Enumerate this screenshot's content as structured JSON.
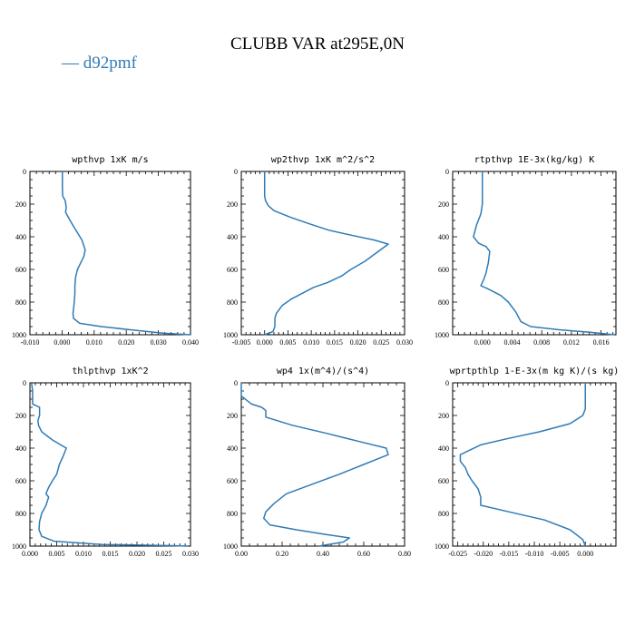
{
  "figure": {
    "title": "CLUBB VAR at295E,0N",
    "legend": "— d92pmf",
    "line_color": "#2f7bb6"
  },
  "chart_data": [
    {
      "type": "line",
      "title": "wpthvp   1xK m/s",
      "xlim": [
        -0.01,
        0.04
      ],
      "ylim": [
        1000,
        0
      ],
      "xticks": [
        "-0.010",
        "0.000",
        "0.010",
        "0.020",
        "0.030",
        "0.040"
      ],
      "yticks": [
        "0",
        "200",
        "400",
        "600",
        "800",
        "1000"
      ],
      "series": [
        {
          "x": [
            0.0001,
            0.0001,
            0.0002,
            0.001,
            0.0013,
            0.0011,
            0.0025,
            0.004,
            0.0062,
            0.0072,
            0.0068,
            0.0058,
            0.0048,
            0.0042,
            0.004,
            0.004,
            0.0038,
            0.0036,
            0.0034,
            0.0036,
            0.0055,
            0.0122,
            0.0215,
            0.0315,
            0.04
          ],
          "y": [
            0,
            100,
            150,
            180,
            220,
            250,
            300,
            350,
            420,
            480,
            520,
            560,
            600,
            650,
            700,
            750,
            800,
            840,
            870,
            900,
            930,
            950,
            970,
            990,
            1000
          ]
        }
      ]
    },
    {
      "type": "line",
      "title": "wp2thvp   1xK m^2/s^2",
      "xlim": [
        -0.005,
        0.03
      ],
      "ylim": [
        1000,
        0
      ],
      "xticks": [
        "-0.005",
        "0.000",
        "0.005",
        "0.010",
        "0.015",
        "0.020",
        "0.025",
        "0.030"
      ],
      "yticks": [
        "0",
        "200",
        "400",
        "600",
        "800",
        "1000"
      ],
      "series": [
        {
          "x": [
            0,
            0,
            0,
            0.0002,
            0.0008,
            0.002,
            0.0055,
            0.0095,
            0.0138,
            0.0185,
            0.0235,
            0.0265,
            0.0215,
            0.0185,
            0.0165,
            0.0135,
            0.0105,
            0.0085,
            0.0058,
            0.0038,
            0.0025,
            0.0022,
            0.0022,
            0.0018,
            0
          ],
          "y": [
            0,
            100,
            150,
            180,
            210,
            240,
            280,
            320,
            360,
            390,
            420,
            445,
            550,
            600,
            640,
            680,
            710,
            740,
            780,
            820,
            870,
            900,
            950,
            980,
            1000
          ]
        }
      ]
    },
    {
      "type": "line",
      "title": "rtpthvp   1E-3x(kg/kg) K",
      "xlim": [
        -0.004,
        0.018
      ],
      "ylim": [
        1000,
        0
      ],
      "xticks": [
        "0.000",
        "0.004",
        "0.008",
        "0.012",
        "0.016"
      ],
      "yticks": [
        "0",
        "200",
        "400",
        "600",
        "800",
        "1000"
      ],
      "series": [
        {
          "x": [
            0,
            0,
            0,
            0,
            -0.0002,
            -0.0008,
            -0.0012,
            -0.0005,
            0.0005,
            0.001,
            0.0008,
            0.0005,
            0.0002,
            -0.0002,
            0.0008,
            0.0025,
            0.0035,
            0.0045,
            0.0052,
            0.0065,
            0.0105,
            0.0145,
            0.0178
          ],
          "y": [
            0,
            100,
            150,
            200,
            260,
            330,
            400,
            440,
            460,
            490,
            560,
            620,
            660,
            700,
            720,
            760,
            800,
            860,
            920,
            950,
            970,
            985,
            1000
          ]
        }
      ]
    },
    {
      "type": "line",
      "title": "thlpthvp   1xK^2",
      "xlim": [
        0,
        0.03
      ],
      "ylim": [
        1000,
        0
      ],
      "xticks": [
        "0.000",
        "0.005",
        "0.010",
        "0.015",
        "0.020",
        "0.025",
        "0.030"
      ],
      "yticks": [
        "0",
        "200",
        "400",
        "600",
        "800",
        "1000"
      ],
      "series": [
        {
          "x": [
            0.0003,
            0.0005,
            0.0005,
            0.0005,
            0.0018,
            0.0018,
            0.0015,
            0.0016,
            0.0022,
            0.0042,
            0.0068,
            0.0062,
            0.0055,
            0.005,
            0.0042,
            0.0035,
            0.003,
            0.0035,
            0.003,
            0.0022,
            0.0018,
            0.0017,
            0.0022,
            0.0045,
            0.0135,
            0.0265,
            0.0295
          ],
          "y": [
            0,
            50,
            100,
            130,
            150,
            200,
            230,
            260,
            300,
            350,
            400,
            450,
            500,
            560,
            600,
            640,
            680,
            700,
            750,
            800,
            850,
            900,
            940,
            970,
            990,
            997,
            1000
          ]
        }
      ]
    },
    {
      "type": "line",
      "title": "wp4   1x(m^4)/(s^4)",
      "xlim": [
        0,
        0.8
      ],
      "ylim": [
        1000,
        0
      ],
      "xticks": [
        "0.00",
        "0.20",
        "0.40",
        "0.60",
        "0.80"
      ],
      "yticks": [
        "0",
        "200",
        "400",
        "600",
        "800",
        "1000"
      ],
      "series": [
        {
          "x": [
            0,
            0,
            0.05,
            0.1,
            0.12,
            0.12,
            0.25,
            0.42,
            0.58,
            0.71,
            0.72,
            0.6,
            0.48,
            0.35,
            0.22,
            0.16,
            0.12,
            0.11,
            0.14,
            0.27,
            0.42,
            0.53,
            0.5,
            0.38
          ],
          "y": [
            0,
            80,
            130,
            150,
            170,
            210,
            260,
            310,
            360,
            400,
            440,
            500,
            560,
            620,
            680,
            740,
            790,
            830,
            870,
            900,
            930,
            950,
            975,
            1000
          ]
        }
      ]
    },
    {
      "type": "line",
      "title": "wprtpthlp   1-E-3x(m kg K)/(s kg)",
      "xlim": [
        -0.026,
        0.006
      ],
      "ylim": [
        1000,
        0
      ],
      "xticks": [
        "-0.025",
        "-0.020",
        "-0.015",
        "-0.010",
        "-0.005",
        "0.000"
      ],
      "yticks": [
        "0",
        "200",
        "400",
        "600",
        "800",
        "1000"
      ],
      "series": [
        {
          "x": [
            0,
            0,
            0,
            -0.0005,
            -0.003,
            -0.009,
            -0.015,
            -0.0205,
            -0.0245,
            -0.0245,
            -0.0235,
            -0.023,
            -0.0222,
            -0.021,
            -0.0205,
            -0.0205,
            -0.015,
            -0.008,
            -0.003,
            -0.0005,
            0
          ],
          "y": [
            0,
            100,
            160,
            200,
            250,
            300,
            340,
            380,
            440,
            480,
            520,
            560,
            600,
            650,
            700,
            750,
            790,
            840,
            900,
            960,
            1000
          ]
        }
      ]
    }
  ]
}
